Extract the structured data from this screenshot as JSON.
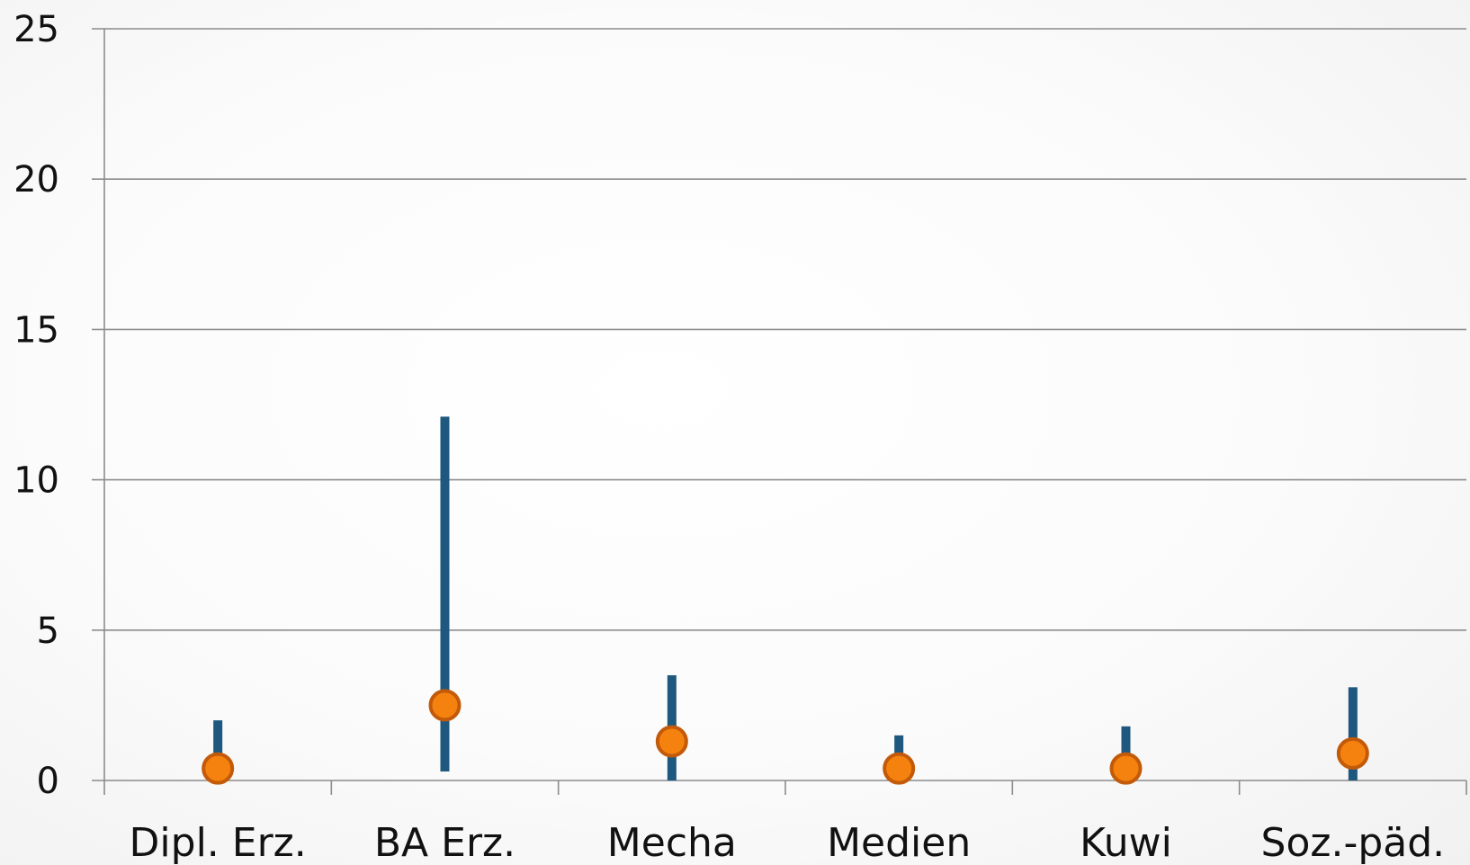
{
  "chart_data": {
    "type": "scatter",
    "categories": [
      "Dipl. Erz.",
      "BA  Erz.",
      "Mecha",
      "Medien",
      "Kuwi",
      "Soz.-päd."
    ],
    "series": [
      {
        "kind": "range",
        "low": [
          0.0,
          0.3,
          0.0,
          0.0,
          0.0,
          0.0
        ],
        "high": [
          2.0,
          12.1,
          3.5,
          1.5,
          1.8,
          3.1
        ]
      },
      {
        "kind": "point",
        "values": [
          0.4,
          2.5,
          1.3,
          0.4,
          0.4,
          0.9
        ]
      }
    ],
    "ylim": [
      0,
      25
    ],
    "yticks": [
      0,
      5,
      10,
      15,
      20,
      25
    ],
    "grid": true,
    "colors": {
      "range": "#1f587e",
      "point_fill": "#f5820f",
      "point_stroke": "#c35a0a",
      "grid": "#8c8c8c"
    }
  }
}
